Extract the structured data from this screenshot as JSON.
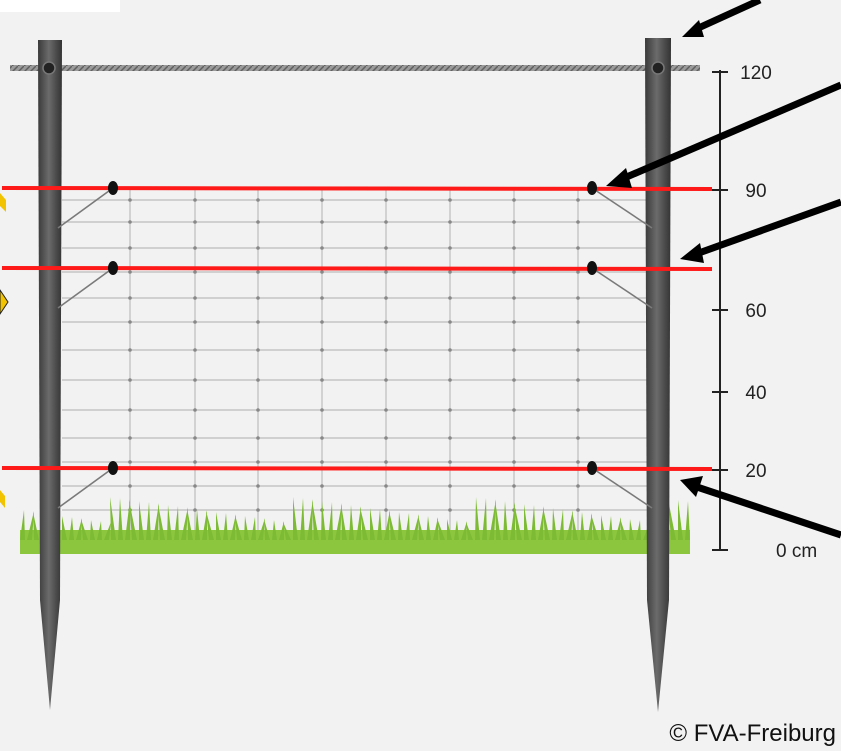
{
  "scale": {
    "ticks": [
      {
        "value": 120,
        "label": "120"
      },
      {
        "value": 90,
        "label": "90"
      },
      {
        "value": 60,
        "label": "60"
      },
      {
        "value": 40,
        "label": "40"
      },
      {
        "value": 20,
        "label": "20"
      },
      {
        "value": 0,
        "label": "0 cm"
      }
    ]
  },
  "red_wire_heights_cm": [
    90,
    70,
    20
  ],
  "top_wire_height_cm": 120,
  "grass_height_cm": 0,
  "credit": "© FVA-Freiburg",
  "colors": {
    "background": "#f2f2f2",
    "post": "#4a4a4a",
    "red_wire": "#ff1a1a",
    "mesh": "#b8b8b8",
    "grass": "#8cc63f",
    "arrow": "#000000"
  }
}
